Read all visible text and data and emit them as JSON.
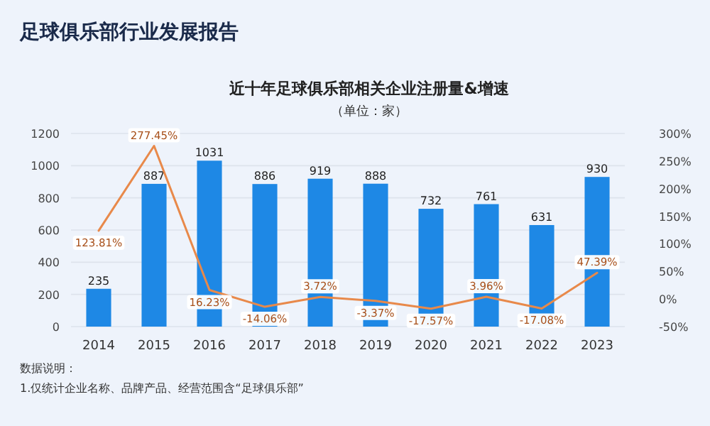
{
  "chart_data": {
    "type": "bar",
    "title": "近十年足球俱乐部相关企业注册量&增速",
    "subtitle": "（单位：家）",
    "categories": [
      "2014",
      "2015",
      "2016",
      "2017",
      "2018",
      "2019",
      "2020",
      "2021",
      "2022",
      "2023"
    ],
    "series": [
      {
        "color": "#1e88e5",
        "values": [
          235,
          887,
          1031,
          886,
          919,
          888,
          732,
          761,
          631,
          930
        ],
        "value_labels": [
          "235",
          "887",
          "1031",
          "886",
          "919",
          "888",
          "732",
          "761",
          "631",
          "930"
        ]
      },
      {
        "type": "line",
        "axis": "y2",
        "color": "#e8894a",
        "values": [
          123.81,
          277.45,
          16.23,
          -14.06,
          3.72,
          -3.37,
          -17.57,
          3.96,
          -17.08,
          47.39
        ],
        "value_labels": [
          "123.81%",
          "277.45%",
          "16.23%",
          "-14.06%",
          "3.72%",
          "-3.37%",
          "-17.57%",
          "3.96%",
          "-17.08%",
          "47.39%"
        ]
      }
    ],
    "ylim": [
      0,
      1200
    ],
    "yticks": [
      0,
      200,
      400,
      600,
      800,
      1000,
      1200
    ],
    "y2lim": [
      -50,
      300
    ],
    "y2ticks": [
      {
        "value": -50,
        "label": "-50%"
      },
      {
        "value": 0,
        "label": "0%"
      },
      {
        "value": 50,
        "label": "50%"
      },
      {
        "value": 100,
        "label": "100%"
      },
      {
        "value": 150,
        "label": "150%"
      },
      {
        "value": 200,
        "label": "200%"
      },
      {
        "value": 250,
        "label": "250%"
      },
      {
        "value": 300,
        "label": "300%"
      }
    ],
    "grid": "y",
    "marker": "none",
    "line_style": "solid",
    "annotations": [
      "足球俱乐部行业发展报告",
      "数据说明：",
      "1.仅统计企业名称、品牌产品、经营范围含“足球俱乐部”"
    ]
  }
}
